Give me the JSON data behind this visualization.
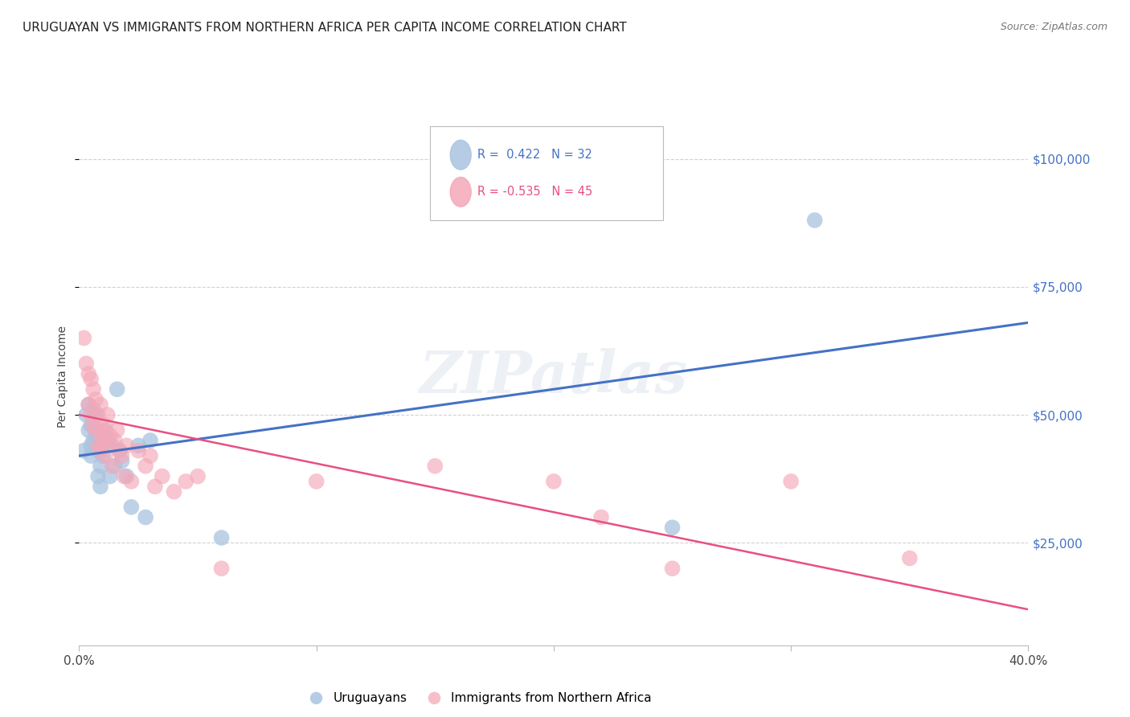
{
  "title": "URUGUAYAN VS IMMIGRANTS FROM NORTHERN AFRICA PER CAPITA INCOME CORRELATION CHART",
  "source": "Source: ZipAtlas.com",
  "ylabel": "Per Capita Income",
  "watermark": "ZIPatlas",
  "blue_label": "Uruguayans",
  "pink_label": "Immigrants from Northern Africa",
  "blue_R": 0.422,
  "blue_N": 32,
  "pink_R": -0.535,
  "pink_N": 45,
  "blue_color": "#A8C4E0",
  "pink_color": "#F4A8B8",
  "blue_line_color": "#4472C4",
  "pink_line_color": "#E85080",
  "xmin": 0.0,
  "xmax": 0.4,
  "ymin": 5000,
  "ymax": 110000,
  "yticks": [
    25000,
    50000,
    75000,
    100000
  ],
  "ytick_labels": [
    "$25,000",
    "$50,000",
    "$75,000",
    "$100,000"
  ],
  "grid_color": "#CCCCCC",
  "background_color": "#FFFFFF",
  "blue_scatter_x": [
    0.002,
    0.003,
    0.004,
    0.004,
    0.005,
    0.005,
    0.005,
    0.006,
    0.006,
    0.007,
    0.007,
    0.008,
    0.008,
    0.009,
    0.009,
    0.01,
    0.011,
    0.012,
    0.013,
    0.014,
    0.015,
    0.016,
    0.017,
    0.018,
    0.02,
    0.022,
    0.025,
    0.028,
    0.03,
    0.06,
    0.25,
    0.31
  ],
  "blue_scatter_y": [
    43000,
    50000,
    52000,
    47000,
    48000,
    44000,
    42000,
    51000,
    45000,
    50000,
    46000,
    43000,
    38000,
    40000,
    36000,
    42000,
    47000,
    45000,
    38000,
    44000,
    40000,
    55000,
    43000,
    41000,
    38000,
    32000,
    44000,
    30000,
    45000,
    26000,
    28000,
    88000
  ],
  "pink_scatter_x": [
    0.002,
    0.003,
    0.004,
    0.004,
    0.005,
    0.005,
    0.006,
    0.006,
    0.007,
    0.007,
    0.008,
    0.008,
    0.009,
    0.009,
    0.01,
    0.01,
    0.011,
    0.011,
    0.012,
    0.012,
    0.013,
    0.014,
    0.015,
    0.016,
    0.017,
    0.018,
    0.019,
    0.02,
    0.022,
    0.025,
    0.028,
    0.03,
    0.032,
    0.035,
    0.04,
    0.045,
    0.05,
    0.06,
    0.1,
    0.15,
    0.2,
    0.22,
    0.25,
    0.3,
    0.35
  ],
  "pink_scatter_y": [
    65000,
    60000,
    58000,
    52000,
    57000,
    50000,
    55000,
    48000,
    53000,
    47000,
    50000,
    44000,
    52000,
    43000,
    47000,
    45000,
    48000,
    42000,
    50000,
    44000,
    46000,
    40000,
    45000,
    47000,
    43000,
    42000,
    38000,
    44000,
    37000,
    43000,
    40000,
    42000,
    36000,
    38000,
    35000,
    37000,
    38000,
    20000,
    37000,
    40000,
    37000,
    30000,
    20000,
    37000,
    22000
  ],
  "blue_line_x": [
    0.0,
    0.4
  ],
  "blue_line_y": [
    42000,
    68000
  ],
  "pink_line_x": [
    0.0,
    0.4
  ],
  "pink_line_y": [
    50000,
    12000
  ],
  "title_fontsize": 11,
  "source_fontsize": 9,
  "axis_label_fontsize": 10,
  "tick_fontsize": 11,
  "watermark_fontsize": 52,
  "watermark_alpha": 0.13,
  "watermark_color": "#7799BB"
}
